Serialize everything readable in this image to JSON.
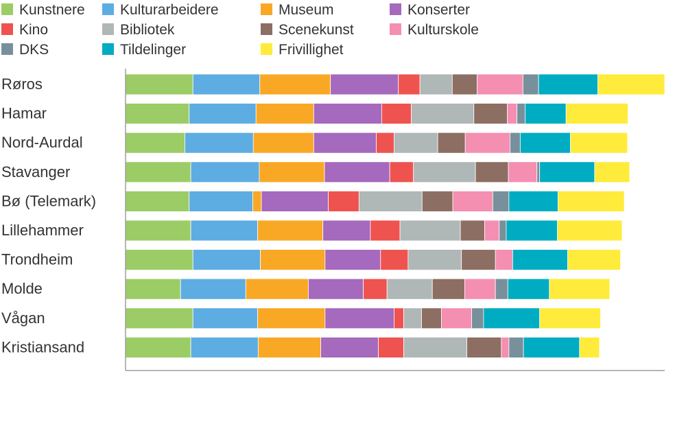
{
  "chart_data": {
    "type": "bar",
    "orientation": "horizontal",
    "stacked": true,
    "title": "",
    "xlabel": "",
    "ylabel": "",
    "xlim": [
      0,
      100
    ],
    "legend_position": "top",
    "categories": [
      "Røros",
      "Hamar",
      "Nord-Aurdal",
      "Stavanger",
      "Bø (Telemark)",
      "Lillehammer",
      "Trondheim",
      "Molde",
      "Vågan",
      "Kristiansand"
    ],
    "series": [
      {
        "name": "Kunstnere",
        "color": "#9ccc65",
        "values": [
          12.5,
          11.8,
          11.0,
          12.1,
          11.8,
          12.1,
          12.5,
          10.2,
          12.5,
          12.1
        ]
      },
      {
        "name": "Kulturarbeidere",
        "color": "#5dade2",
        "values": [
          12.4,
          12.4,
          12.7,
          12.7,
          11.8,
          12.4,
          12.5,
          12.1,
          12.0,
          12.5
        ]
      },
      {
        "name": "Museum",
        "color": "#f9a825",
        "values": [
          13.1,
          10.7,
          11.2,
          12.1,
          1.6,
          12.1,
          12.0,
          11.6,
          12.5,
          11.6
        ]
      },
      {
        "name": "Konserter",
        "color": "#a569bd",
        "values": [
          12.6,
          12.6,
          11.6,
          12.1,
          12.4,
          8.8,
          10.3,
          10.2,
          12.8,
          10.7
        ]
      },
      {
        "name": "Kino",
        "color": "#ef5350",
        "values": [
          4.0,
          5.5,
          3.3,
          4.4,
          5.7,
          5.5,
          5.1,
          4.4,
          1.8,
          4.7
        ]
      },
      {
        "name": "Bibliotek",
        "color": "#b0b7b7",
        "values": [
          6.0,
          11.6,
          8.1,
          11.5,
          11.7,
          11.2,
          9.9,
          8.4,
          3.3,
          11.7
        ]
      },
      {
        "name": "Scenekunst",
        "color": "#8d6e63",
        "values": [
          4.6,
          6.2,
          5.1,
          6.1,
          5.7,
          4.5,
          6.3,
          6.0,
          3.7,
          6.4
        ]
      },
      {
        "name": "Kulturskole",
        "color": "#f48fb1",
        "values": [
          8.5,
          1.8,
          8.3,
          5.3,
          7.4,
          2.7,
          3.2,
          5.7,
          5.6,
          1.4
        ]
      },
      {
        "name": "DKS",
        "color": "#78909c",
        "values": [
          2.9,
          1.5,
          1.9,
          0.5,
          3.0,
          1.3,
          0.0,
          2.3,
          2.2,
          2.7
        ]
      },
      {
        "name": "Tildelinger",
        "color": "#00acc1",
        "values": [
          11.0,
          7.6,
          9.3,
          10.2,
          9.1,
          9.5,
          10.2,
          7.7,
          10.4,
          10.4
        ]
      },
      {
        "name": "Frivillighet",
        "color": "#ffeb3b",
        "values": [
          12.4,
          11.5,
          10.6,
          6.5,
          12.3,
          12.0,
          9.8,
          11.2,
          11.3,
          3.7
        ]
      }
    ]
  }
}
